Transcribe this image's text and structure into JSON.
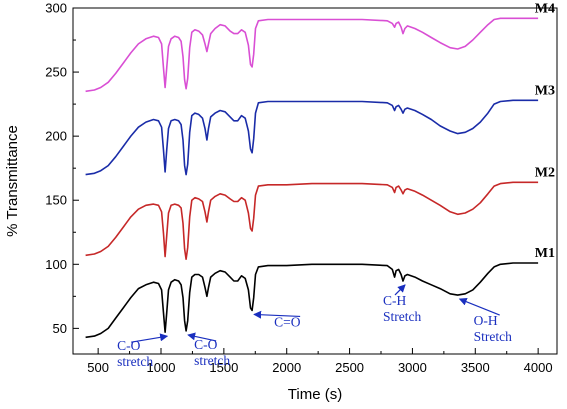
{
  "chart_data": {
    "type": "line",
    "xlabel": "Time (s)",
    "ylabel": "% Transmittance",
    "xlim": [
      300,
      4150
    ],
    "ylim": [
      30,
      300
    ],
    "xticks": [
      500,
      1000,
      1500,
      2000,
      2500,
      3000,
      3500,
      4000
    ],
    "yticks": [
      50,
      100,
      150,
      200,
      250,
      300
    ],
    "grid": false,
    "series": [
      {
        "name": "M1",
        "color": "#000000",
        "points": [
          [
            400,
            43
          ],
          [
            470,
            44
          ],
          [
            520,
            46
          ],
          [
            580,
            50
          ],
          [
            640,
            58
          ],
          [
            700,
            66
          ],
          [
            760,
            74
          ],
          [
            820,
            81
          ],
          [
            880,
            84
          ],
          [
            940,
            86
          ],
          [
            980,
            85
          ],
          [
            1005,
            80
          ],
          [
            1020,
            62
          ],
          [
            1033,
            47
          ],
          [
            1045,
            62
          ],
          [
            1060,
            80
          ],
          [
            1080,
            86
          ],
          [
            1110,
            88
          ],
          [
            1140,
            87
          ],
          [
            1160,
            84
          ],
          [
            1175,
            74
          ],
          [
            1188,
            56
          ],
          [
            1200,
            48
          ],
          [
            1212,
            56
          ],
          [
            1228,
            78
          ],
          [
            1245,
            90
          ],
          [
            1270,
            92
          ],
          [
            1300,
            92
          ],
          [
            1330,
            90
          ],
          [
            1350,
            82
          ],
          [
            1365,
            75
          ],
          [
            1378,
            82
          ],
          [
            1395,
            90
          ],
          [
            1430,
            93
          ],
          [
            1470,
            95
          ],
          [
            1510,
            94
          ],
          [
            1550,
            90
          ],
          [
            1580,
            87
          ],
          [
            1610,
            87
          ],
          [
            1640,
            91
          ],
          [
            1670,
            89
          ],
          [
            1695,
            80
          ],
          [
            1712,
            66
          ],
          [
            1725,
            64
          ],
          [
            1737,
            74
          ],
          [
            1752,
            92
          ],
          [
            1775,
            98
          ],
          [
            1850,
            99
          ],
          [
            2000,
            99
          ],
          [
            2200,
            100
          ],
          [
            2400,
            100
          ],
          [
            2600,
            100
          ],
          [
            2800,
            99
          ],
          [
            2840,
            96
          ],
          [
            2858,
            90
          ],
          [
            2870,
            95
          ],
          [
            2890,
            96
          ],
          [
            2910,
            92
          ],
          [
            2925,
            87
          ],
          [
            2940,
            91
          ],
          [
            2960,
            92
          ],
          [
            3020,
            90
          ],
          [
            3080,
            87
          ],
          [
            3150,
            84
          ],
          [
            3220,
            81
          ],
          [
            3300,
            77
          ],
          [
            3360,
            76
          ],
          [
            3420,
            77
          ],
          [
            3480,
            80
          ],
          [
            3540,
            86
          ],
          [
            3600,
            93
          ],
          [
            3650,
            98
          ],
          [
            3700,
            100
          ],
          [
            3800,
            101
          ],
          [
            4000,
            101
          ]
        ]
      },
      {
        "name": "M2",
        "color": "#c62828",
        "points": [
          [
            400,
            107
          ],
          [
            470,
            108
          ],
          [
            520,
            110
          ],
          [
            580,
            114
          ],
          [
            640,
            121
          ],
          [
            700,
            129
          ],
          [
            760,
            137
          ],
          [
            820,
            143
          ],
          [
            880,
            146
          ],
          [
            940,
            147
          ],
          [
            980,
            146
          ],
          [
            1005,
            141
          ],
          [
            1020,
            124
          ],
          [
            1033,
            106
          ],
          [
            1045,
            122
          ],
          [
            1060,
            140
          ],
          [
            1080,
            146
          ],
          [
            1110,
            147
          ],
          [
            1140,
            146
          ],
          [
            1160,
            144
          ],
          [
            1175,
            132
          ],
          [
            1188,
            112
          ],
          [
            1200,
            104
          ],
          [
            1212,
            113
          ],
          [
            1228,
            137
          ],
          [
            1245,
            150
          ],
          [
            1270,
            152
          ],
          [
            1300,
            151
          ],
          [
            1330,
            149
          ],
          [
            1350,
            141
          ],
          [
            1365,
            133
          ],
          [
            1378,
            141
          ],
          [
            1395,
            150
          ],
          [
            1430,
            153
          ],
          [
            1470,
            155
          ],
          [
            1510,
            154
          ],
          [
            1550,
            151
          ],
          [
            1580,
            149
          ],
          [
            1610,
            149
          ],
          [
            1640,
            152
          ],
          [
            1670,
            150
          ],
          [
            1695,
            140
          ],
          [
            1712,
            128
          ],
          [
            1725,
            126
          ],
          [
            1737,
            136
          ],
          [
            1752,
            154
          ],
          [
            1775,
            161
          ],
          [
            1850,
            162
          ],
          [
            2000,
            162
          ],
          [
            2200,
            163
          ],
          [
            2400,
            163
          ],
          [
            2600,
            163
          ],
          [
            2800,
            162
          ],
          [
            2840,
            160
          ],
          [
            2858,
            156
          ],
          [
            2870,
            160
          ],
          [
            2890,
            161
          ],
          [
            2910,
            158
          ],
          [
            2925,
            155
          ],
          [
            2940,
            158
          ],
          [
            2960,
            159
          ],
          [
            3020,
            157
          ],
          [
            3080,
            154
          ],
          [
            3150,
            150
          ],
          [
            3220,
            146
          ],
          [
            3300,
            141
          ],
          [
            3360,
            139
          ],
          [
            3420,
            140
          ],
          [
            3480,
            143
          ],
          [
            3540,
            148
          ],
          [
            3600,
            155
          ],
          [
            3650,
            161
          ],
          [
            3700,
            163
          ],
          [
            3800,
            164
          ],
          [
            4000,
            164
          ]
        ]
      },
      {
        "name": "M3",
        "color": "#1a2ca8",
        "points": [
          [
            400,
            170
          ],
          [
            470,
            171
          ],
          [
            520,
            173
          ],
          [
            580,
            177
          ],
          [
            640,
            184
          ],
          [
            700,
            192
          ],
          [
            760,
            200
          ],
          [
            820,
            207
          ],
          [
            880,
            211
          ],
          [
            940,
            213
          ],
          [
            980,
            212
          ],
          [
            1005,
            207
          ],
          [
            1020,
            189
          ],
          [
            1033,
            172
          ],
          [
            1045,
            189
          ],
          [
            1060,
            206
          ],
          [
            1080,
            212
          ],
          [
            1110,
            213
          ],
          [
            1140,
            212
          ],
          [
            1160,
            209
          ],
          [
            1175,
            197
          ],
          [
            1188,
            177
          ],
          [
            1200,
            170
          ],
          [
            1212,
            178
          ],
          [
            1228,
            203
          ],
          [
            1245,
            216
          ],
          [
            1270,
            218
          ],
          [
            1300,
            217
          ],
          [
            1330,
            214
          ],
          [
            1350,
            206
          ],
          [
            1365,
            197
          ],
          [
            1378,
            206
          ],
          [
            1395,
            215
          ],
          [
            1430,
            218
          ],
          [
            1470,
            220
          ],
          [
            1510,
            219
          ],
          [
            1550,
            215
          ],
          [
            1580,
            212
          ],
          [
            1610,
            212
          ],
          [
            1640,
            216
          ],
          [
            1670,
            214
          ],
          [
            1695,
            204
          ],
          [
            1712,
            190
          ],
          [
            1725,
            187
          ],
          [
            1737,
            198
          ],
          [
            1752,
            218
          ],
          [
            1775,
            226
          ],
          [
            1850,
            227
          ],
          [
            2000,
            227
          ],
          [
            2200,
            227
          ],
          [
            2400,
            227
          ],
          [
            2600,
            227
          ],
          [
            2800,
            226
          ],
          [
            2840,
            224
          ],
          [
            2858,
            220
          ],
          [
            2870,
            223
          ],
          [
            2890,
            224
          ],
          [
            2910,
            221
          ],
          [
            2925,
            218
          ],
          [
            2940,
            221
          ],
          [
            2960,
            222
          ],
          [
            3020,
            220
          ],
          [
            3080,
            217
          ],
          [
            3150,
            213
          ],
          [
            3220,
            208
          ],
          [
            3300,
            204
          ],
          [
            3360,
            202
          ],
          [
            3420,
            203
          ],
          [
            3480,
            206
          ],
          [
            3540,
            211
          ],
          [
            3600,
            218
          ],
          [
            3650,
            225
          ],
          [
            3700,
            227
          ],
          [
            3800,
            228
          ],
          [
            4000,
            228
          ]
        ]
      },
      {
        "name": "M4",
        "color": "#d94fd4",
        "points": [
          [
            400,
            235
          ],
          [
            470,
            236
          ],
          [
            520,
            238
          ],
          [
            580,
            242
          ],
          [
            640,
            249
          ],
          [
            700,
            257
          ],
          [
            760,
            265
          ],
          [
            820,
            272
          ],
          [
            880,
            276
          ],
          [
            940,
            278
          ],
          [
            980,
            277
          ],
          [
            1005,
            272
          ],
          [
            1020,
            253
          ],
          [
            1033,
            238
          ],
          [
            1045,
            253
          ],
          [
            1060,
            270
          ],
          [
            1080,
            276
          ],
          [
            1110,
            278
          ],
          [
            1140,
            277
          ],
          [
            1160,
            274
          ],
          [
            1175,
            262
          ],
          [
            1188,
            244
          ],
          [
            1200,
            237
          ],
          [
            1212,
            245
          ],
          [
            1228,
            269
          ],
          [
            1245,
            281
          ],
          [
            1270,
            283
          ],
          [
            1300,
            282
          ],
          [
            1330,
            279
          ],
          [
            1350,
            272
          ],
          [
            1365,
            266
          ],
          [
            1378,
            272
          ],
          [
            1395,
            280
          ],
          [
            1430,
            284
          ],
          [
            1470,
            287
          ],
          [
            1510,
            286
          ],
          [
            1550,
            282
          ],
          [
            1580,
            280
          ],
          [
            1610,
            280
          ],
          [
            1640,
            283
          ],
          [
            1670,
            281
          ],
          [
            1695,
            271
          ],
          [
            1712,
            256
          ],
          [
            1725,
            254
          ],
          [
            1737,
            264
          ],
          [
            1752,
            284
          ],
          [
            1775,
            290
          ],
          [
            1850,
            291
          ],
          [
            2000,
            291
          ],
          [
            2200,
            291
          ],
          [
            2400,
            291
          ],
          [
            2600,
            291
          ],
          [
            2800,
            290
          ],
          [
            2840,
            288
          ],
          [
            2858,
            285
          ],
          [
            2870,
            288
          ],
          [
            2890,
            289
          ],
          [
            2910,
            285
          ],
          [
            2925,
            280
          ],
          [
            2940,
            284
          ],
          [
            2960,
            286
          ],
          [
            3020,
            284
          ],
          [
            3080,
            281
          ],
          [
            3150,
            277
          ],
          [
            3220,
            273
          ],
          [
            3300,
            269
          ],
          [
            3360,
            268
          ],
          [
            3420,
            270
          ],
          [
            3480,
            275
          ],
          [
            3540,
            281
          ],
          [
            3600,
            287
          ],
          [
            3650,
            291
          ],
          [
            3700,
            292
          ],
          [
            3800,
            292
          ],
          [
            4000,
            292
          ]
        ]
      }
    ],
    "annotations": [
      {
        "lines": [
          "C-O",
          "stretch"
        ],
        "target": [
          1033,
          47
        ]
      },
      {
        "lines": [
          "C-O",
          "stretch"
        ],
        "target": [
          1200,
          48
        ]
      },
      {
        "lines": [
          "C=O"
        ],
        "target": [
          1725,
          64
        ]
      },
      {
        "lines": [
          "C-H",
          "Stretch"
        ],
        "target": [
          2925,
          87
        ]
      },
      {
        "lines": [
          "O-H",
          "Stretch"
        ],
        "target": [
          3360,
          76
        ]
      }
    ]
  }
}
